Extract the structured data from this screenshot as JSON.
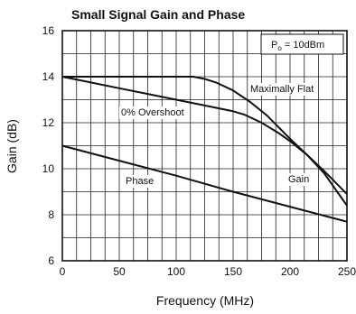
{
  "chart_data": {
    "type": "line",
    "title": "Small Signal Gain and Phase",
    "xlabel": "Frequency (MHz)",
    "ylabel": "Gain (dB)",
    "xlim": [
      0,
      250
    ],
    "ylim": [
      6,
      16
    ],
    "x_ticks": [
      0,
      50,
      100,
      150,
      200,
      250
    ],
    "y_ticks": [
      6,
      8,
      10,
      12,
      14,
      16
    ],
    "grid": true,
    "annotations": {
      "condition": {
        "main": "P",
        "sub": "o",
        "rest": " = 10dBm"
      },
      "maximally_flat": "Maximally Flat",
      "overshoot": "0% Overshoot",
      "phase": "Phase",
      "gain": "Gain"
    },
    "series": [
      {
        "name": "Maximally Flat",
        "x": [
          0,
          25,
          50,
          75,
          100,
          115,
          125,
          135,
          150,
          165,
          180,
          200,
          215,
          230,
          240,
          250
        ],
        "y": [
          14.0,
          14.0,
          14.0,
          14.0,
          14.0,
          14.0,
          13.9,
          13.75,
          13.4,
          12.9,
          12.3,
          11.3,
          10.6,
          9.9,
          9.4,
          8.9
        ]
      },
      {
        "name": "0% Overshoot",
        "x": [
          0,
          25,
          50,
          75,
          100,
          125,
          150,
          160,
          175,
          190,
          200,
          215,
          230,
          240,
          250
        ],
        "y": [
          14.0,
          13.75,
          13.5,
          13.25,
          13.0,
          12.75,
          12.5,
          12.35,
          12.0,
          11.55,
          11.2,
          10.6,
          9.8,
          9.1,
          8.4
        ]
      },
      {
        "name": "Phase",
        "x": [
          0,
          50,
          100,
          150,
          200,
          250
        ],
        "y": [
          11.0,
          10.35,
          9.7,
          9.0,
          8.35,
          7.7
        ]
      }
    ]
  }
}
